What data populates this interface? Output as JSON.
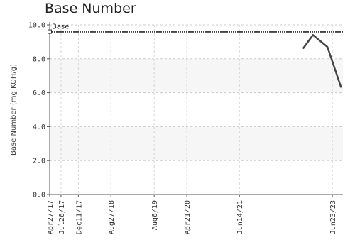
{
  "chart_data": {
    "type": "line",
    "title": "Base Number",
    "ylabel": "Base Number (mg KOH/g)",
    "xlabel": "",
    "ylim": [
      0,
      10
    ],
    "yticks": [
      0,
      2,
      4,
      6,
      8,
      10
    ],
    "ytick_labels": [
      "0.0",
      "2.0",
      "4.0",
      "6.0",
      "8.0",
      "10.0"
    ],
    "xlim": [
      "2017-04-27",
      "2023-09-15"
    ],
    "xticks": [
      "2017-04-27",
      "2017-07-26",
      "2017-12-11",
      "2018-08-27",
      "2019-08-06",
      "2020-04-21",
      "2021-06-14",
      "2023-06-23"
    ],
    "xtick_labels": [
      "Apr27/17",
      "Jul26/17",
      "Dec11/17",
      "Aug27/18",
      "Aug6/19",
      "Apr21/20",
      "Jun14/21",
      "Jun23/23"
    ],
    "grid": true,
    "series": [
      {
        "name": "Base",
        "style": "dashed-reference",
        "color": "#444444",
        "x": [
          "2017-04-27",
          "2023-09-15"
        ],
        "y": [
          9.6,
          9.6
        ]
      },
      {
        "name": "",
        "style": "solid",
        "color": "#444444",
        "x": [
          "2022-11-01",
          "2023-01-20",
          "2023-05-15",
          "2023-09-01"
        ],
        "y": [
          8.6,
          9.4,
          8.7,
          6.3
        ]
      }
    ],
    "annotations": [
      {
        "text": "Base",
        "x": "2017-04-27",
        "y": 9.6
      }
    ]
  }
}
